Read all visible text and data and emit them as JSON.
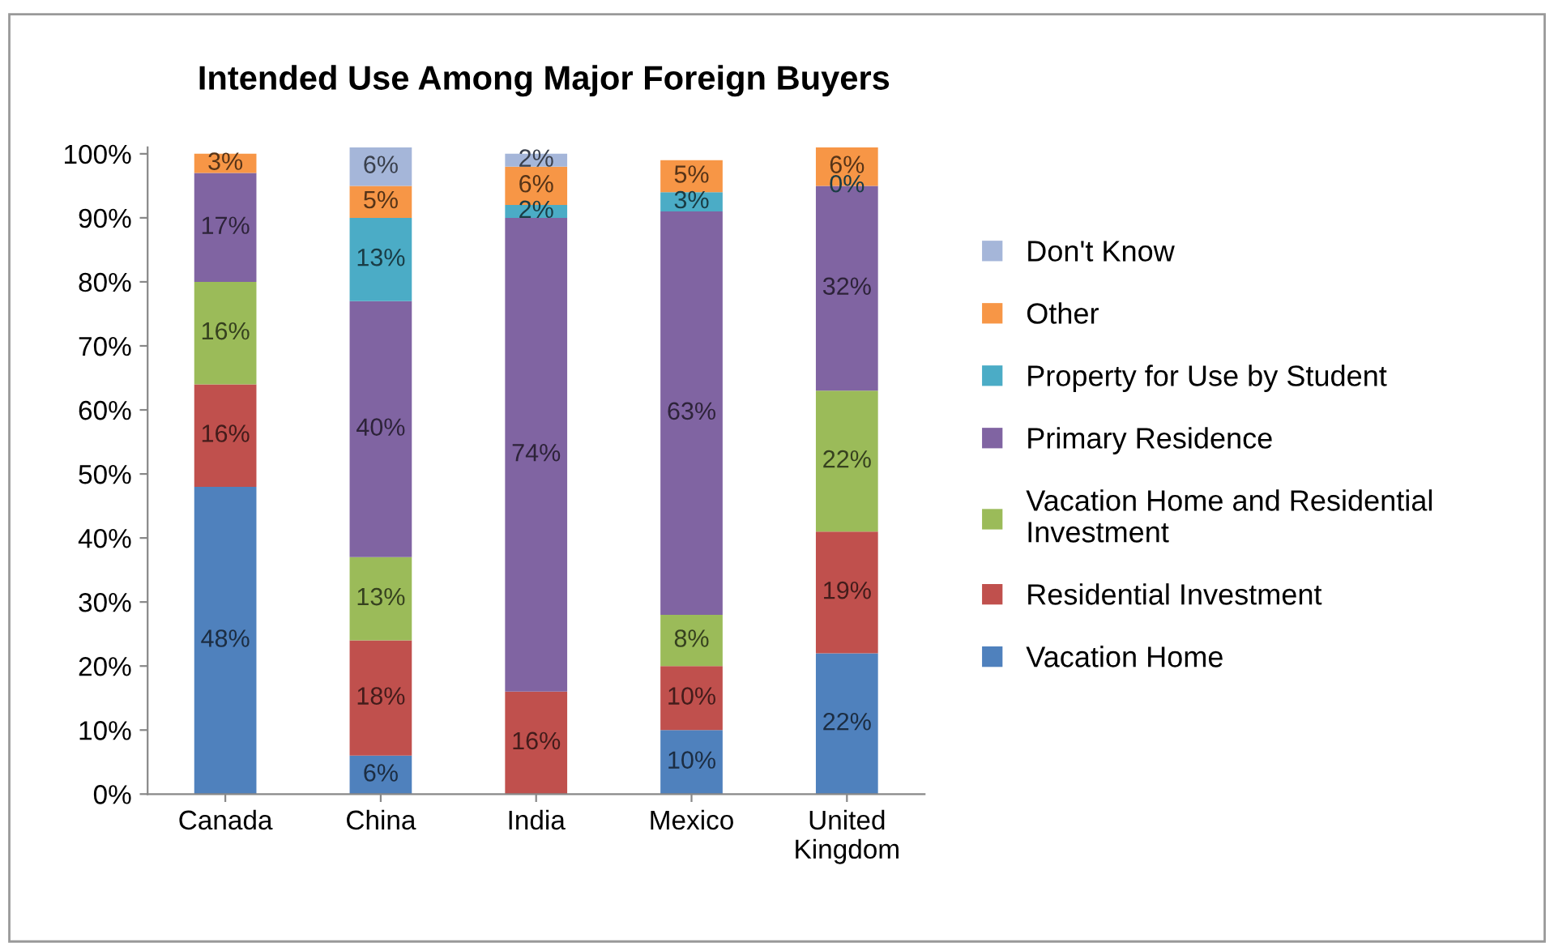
{
  "chart_data": {
    "type": "bar",
    "stacked": true,
    "title": "Intended Use Among Major Foreign Buyers",
    "categories": [
      "Canada",
      "China",
      "India",
      "Mexico",
      "United\nKingdom"
    ],
    "series": [
      {
        "name": "Vacation Home",
        "color": "#4f81bd",
        "values": [
          48,
          6,
          0,
          10,
          22
        ],
        "value_labels": [
          "48%",
          "6%",
          null,
          "10%",
          "22%"
        ]
      },
      {
        "name": "Residential Investment",
        "color": "#c0504d",
        "values": [
          16,
          18,
          16,
          10,
          19
        ],
        "value_labels": [
          "16%",
          "18%",
          "16%",
          "10%",
          "19%"
        ]
      },
      {
        "name": "Vacation Home and Residential Investment",
        "color": "#9bbb59",
        "values": [
          16,
          13,
          0,
          8,
          22
        ],
        "value_labels": [
          "16%",
          "13%",
          null,
          "8%",
          "22%"
        ]
      },
      {
        "name": "Primary Residence",
        "color": "#8064a2",
        "values": [
          17,
          40,
          74,
          63,
          32
        ],
        "value_labels": [
          "17%",
          "40%",
          "74%",
          "63%",
          "32%"
        ]
      },
      {
        "name": "Property for Use by Student",
        "color": "#4bacc6",
        "values": [
          0,
          13,
          2,
          3,
          0
        ],
        "value_labels": [
          null,
          "13%",
          "2%",
          "3%",
          "0%"
        ]
      },
      {
        "name": "Other",
        "color": "#f79646",
        "values": [
          3,
          5,
          6,
          5,
          6
        ],
        "value_labels": [
          "3%",
          "5%",
          "6%",
          "5%",
          "6%"
        ]
      },
      {
        "name": "Don't Know",
        "color": "#a5b6d9",
        "values": [
          0,
          6,
          2,
          0,
          0
        ],
        "value_labels": [
          null,
          "6%",
          "2%",
          null,
          null
        ]
      }
    ],
    "ylim": [
      0,
      101
    ],
    "yticks": [
      {
        "value": 0,
        "label": "0%"
      },
      {
        "value": 10,
        "label": "10%"
      },
      {
        "value": 20,
        "label": "20%"
      },
      {
        "value": 30,
        "label": "30%"
      },
      {
        "value": 40,
        "label": "40%"
      },
      {
        "value": 50,
        "label": "50%"
      },
      {
        "value": 60,
        "label": "60%"
      },
      {
        "value": 70,
        "label": "70%"
      },
      {
        "value": 80,
        "label": "80%"
      },
      {
        "value": 90,
        "label": "90%"
      },
      {
        "value": 100,
        "label": "100%"
      }
    ],
    "grid": false,
    "legend": "right"
  }
}
